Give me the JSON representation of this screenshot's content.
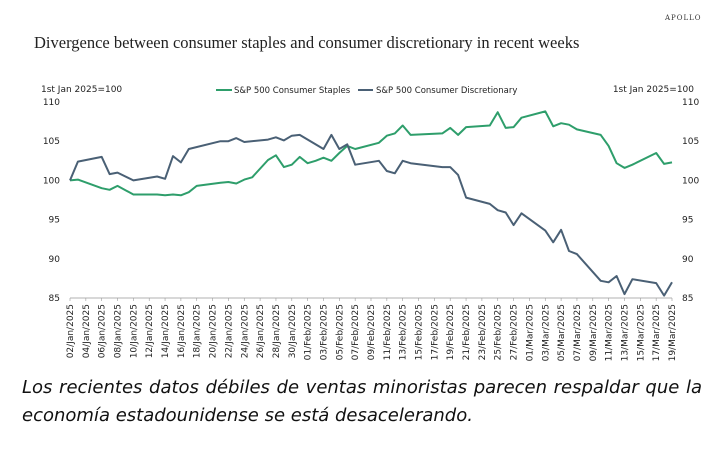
{
  "brand": "APOLLO",
  "caption": "Los recientes datos débiles de ventas minoristas parecen respaldar que la economía estadounidense se está desacelerando.",
  "chart_data": {
    "type": "line",
    "title": "Divergence between consumer staples and consumer discretionary in recent weeks",
    "ylabel_left": "1st Jan 2025=100",
    "ylabel_right": "1st Jan 2025=100",
    "ylim": [
      85,
      110
    ],
    "yticks": [
      85,
      90,
      95,
      100,
      105,
      110
    ],
    "legend_position": "top-center",
    "grid": false,
    "xticks": [
      "02/Jan/2025",
      "04/Jan/2025",
      "06/Jan/2025",
      "08/Jan/2025",
      "10/Jan/2025",
      "12/Jan/2025",
      "14/Jan/2025",
      "16/Jan/2025",
      "18/Jan/2025",
      "20/Jan/2025",
      "22/Jan/2025",
      "24/Jan/2025",
      "26/Jan/2025",
      "28/Jan/2025",
      "30/Jan/2025",
      "01/Feb/2025",
      "03/Feb/2025",
      "05/Feb/2025",
      "07/Feb/2025",
      "09/Feb/2025",
      "11/Feb/2025",
      "13/Feb/2025",
      "15/Feb/2025",
      "17/Feb/2025",
      "19/Feb/2025",
      "21/Feb/2025",
      "23/Feb/2025",
      "25/Feb/2025",
      "27/Feb/2025",
      "01/Mar/2025",
      "03/Mar/2025",
      "05/Mar/2025",
      "07/Mar/2025",
      "09/Mar/2025",
      "11/Mar/2025",
      "13/Mar/2025",
      "15/Mar/2025",
      "17/Mar/2025",
      "19/Mar/2025"
    ],
    "series": [
      {
        "name": "S&P 500 Consumer Staples",
        "color": "#2e9e6b",
        "points": [
          [
            "02/Jan/2025",
            100.0
          ],
          [
            "03/Jan/2025",
            100.1
          ],
          [
            "06/Jan/2025",
            99.0
          ],
          [
            "07/Jan/2025",
            98.8
          ],
          [
            "08/Jan/2025",
            99.3
          ],
          [
            "10/Jan/2025",
            98.2
          ],
          [
            "13/Jan/2025",
            98.2
          ],
          [
            "14/Jan/2025",
            98.1
          ],
          [
            "15/Jan/2025",
            98.2
          ],
          [
            "16/Jan/2025",
            98.1
          ],
          [
            "17/Jan/2025",
            98.5
          ],
          [
            "18/Jan/2025",
            99.3
          ],
          [
            "21/Jan/2025",
            99.7
          ],
          [
            "22/Jan/2025",
            99.8
          ],
          [
            "23/Jan/2025",
            99.6
          ],
          [
            "24/Jan/2025",
            100.1
          ],
          [
            "25/Jan/2025",
            100.4
          ],
          [
            "27/Jan/2025",
            102.6
          ],
          [
            "28/Jan/2025",
            103.2
          ],
          [
            "29/Jan/2025",
            101.7
          ],
          [
            "30/Jan/2025",
            102.0
          ],
          [
            "31/Jan/2025",
            103.0
          ],
          [
            "01/Feb/2025",
            102.2
          ],
          [
            "02/Feb/2025",
            102.5
          ],
          [
            "03/Feb/2025",
            102.9
          ],
          [
            "04/Feb/2025",
            102.5
          ],
          [
            "05/Feb/2025",
            103.5
          ],
          [
            "06/Feb/2025",
            104.4
          ],
          [
            "07/Feb/2025",
            104.0
          ],
          [
            "10/Feb/2025",
            104.8
          ],
          [
            "11/Feb/2025",
            105.7
          ],
          [
            "12/Feb/2025",
            106.0
          ],
          [
            "13/Feb/2025",
            107.0
          ],
          [
            "14/Feb/2025",
            105.8
          ],
          [
            "18/Feb/2025",
            106.0
          ],
          [
            "19/Feb/2025",
            106.7
          ],
          [
            "20/Feb/2025",
            105.8
          ],
          [
            "21/Feb/2025",
            106.8
          ],
          [
            "24/Feb/2025",
            107.0
          ],
          [
            "25/Feb/2025",
            108.7
          ],
          [
            "26/Feb/2025",
            106.7
          ],
          [
            "27/Feb/2025",
            106.8
          ],
          [
            "28/Feb/2025",
            108.0
          ],
          [
            "03/Mar/2025",
            108.8
          ],
          [
            "04/Mar/2025",
            106.9
          ],
          [
            "05/Mar/2025",
            107.3
          ],
          [
            "06/Mar/2025",
            107.1
          ],
          [
            "07/Mar/2025",
            106.5
          ],
          [
            "10/Mar/2025",
            105.8
          ],
          [
            "11/Mar/2025",
            104.4
          ],
          [
            "12/Mar/2025",
            102.2
          ],
          [
            "13/Mar/2025",
            101.6
          ],
          [
            "14/Mar/2025",
            102.0
          ],
          [
            "17/Mar/2025",
            103.5
          ],
          [
            "18/Mar/2025",
            102.1
          ],
          [
            "19/Mar/2025",
            102.3
          ]
        ]
      },
      {
        "name": "S&P 500 Consumer Discretionary",
        "color": "#4a6075",
        "points": [
          [
            "02/Jan/2025",
            100.0
          ],
          [
            "03/Jan/2025",
            102.4
          ],
          [
            "06/Jan/2025",
            103.0
          ],
          [
            "07/Jan/2025",
            100.8
          ],
          [
            "08/Jan/2025",
            101.0
          ],
          [
            "10/Jan/2025",
            100.0
          ],
          [
            "13/Jan/2025",
            100.5
          ],
          [
            "14/Jan/2025",
            100.2
          ],
          [
            "15/Jan/2025",
            103.1
          ],
          [
            "16/Jan/2025",
            102.3
          ],
          [
            "17/Jan/2025",
            104.0
          ],
          [
            "21/Jan/2025",
            105.0
          ],
          [
            "22/Jan/2025",
            105.0
          ],
          [
            "23/Jan/2025",
            105.4
          ],
          [
            "24/Jan/2025",
            104.9
          ],
          [
            "27/Jan/2025",
            105.2
          ],
          [
            "28/Jan/2025",
            105.5
          ],
          [
            "29/Jan/2025",
            105.1
          ],
          [
            "30/Jan/2025",
            105.7
          ],
          [
            "31/Jan/2025",
            105.8
          ],
          [
            "03/Feb/2025",
            104.0
          ],
          [
            "04/Feb/2025",
            105.8
          ],
          [
            "05/Feb/2025",
            104.0
          ],
          [
            "06/Feb/2025",
            104.6
          ],
          [
            "07/Feb/2025",
            102.0
          ],
          [
            "10/Feb/2025",
            102.5
          ],
          [
            "11/Feb/2025",
            101.2
          ],
          [
            "12/Feb/2025",
            100.9
          ],
          [
            "13/Feb/2025",
            102.5
          ],
          [
            "14/Feb/2025",
            102.2
          ],
          [
            "18/Feb/2025",
            101.7
          ],
          [
            "19/Feb/2025",
            101.7
          ],
          [
            "20/Feb/2025",
            100.7
          ],
          [
            "21/Feb/2025",
            97.8
          ],
          [
            "24/Feb/2025",
            97.0
          ],
          [
            "25/Feb/2025",
            96.2
          ],
          [
            "26/Feb/2025",
            95.9
          ],
          [
            "27/Feb/2025",
            94.3
          ],
          [
            "28/Feb/2025",
            95.8
          ],
          [
            "03/Mar/2025",
            93.6
          ],
          [
            "04/Mar/2025",
            92.1
          ],
          [
            "05/Mar/2025",
            93.7
          ],
          [
            "06/Mar/2025",
            91.0
          ],
          [
            "07/Mar/2025",
            90.6
          ],
          [
            "10/Mar/2025",
            87.2
          ],
          [
            "11/Mar/2025",
            87.0
          ],
          [
            "12/Mar/2025",
            87.8
          ],
          [
            "13/Mar/2025",
            85.5
          ],
          [
            "14/Mar/2025",
            87.4
          ],
          [
            "17/Mar/2025",
            86.9
          ],
          [
            "18/Mar/2025",
            85.3
          ],
          [
            "19/Mar/2025",
            87.0
          ]
        ]
      }
    ]
  }
}
